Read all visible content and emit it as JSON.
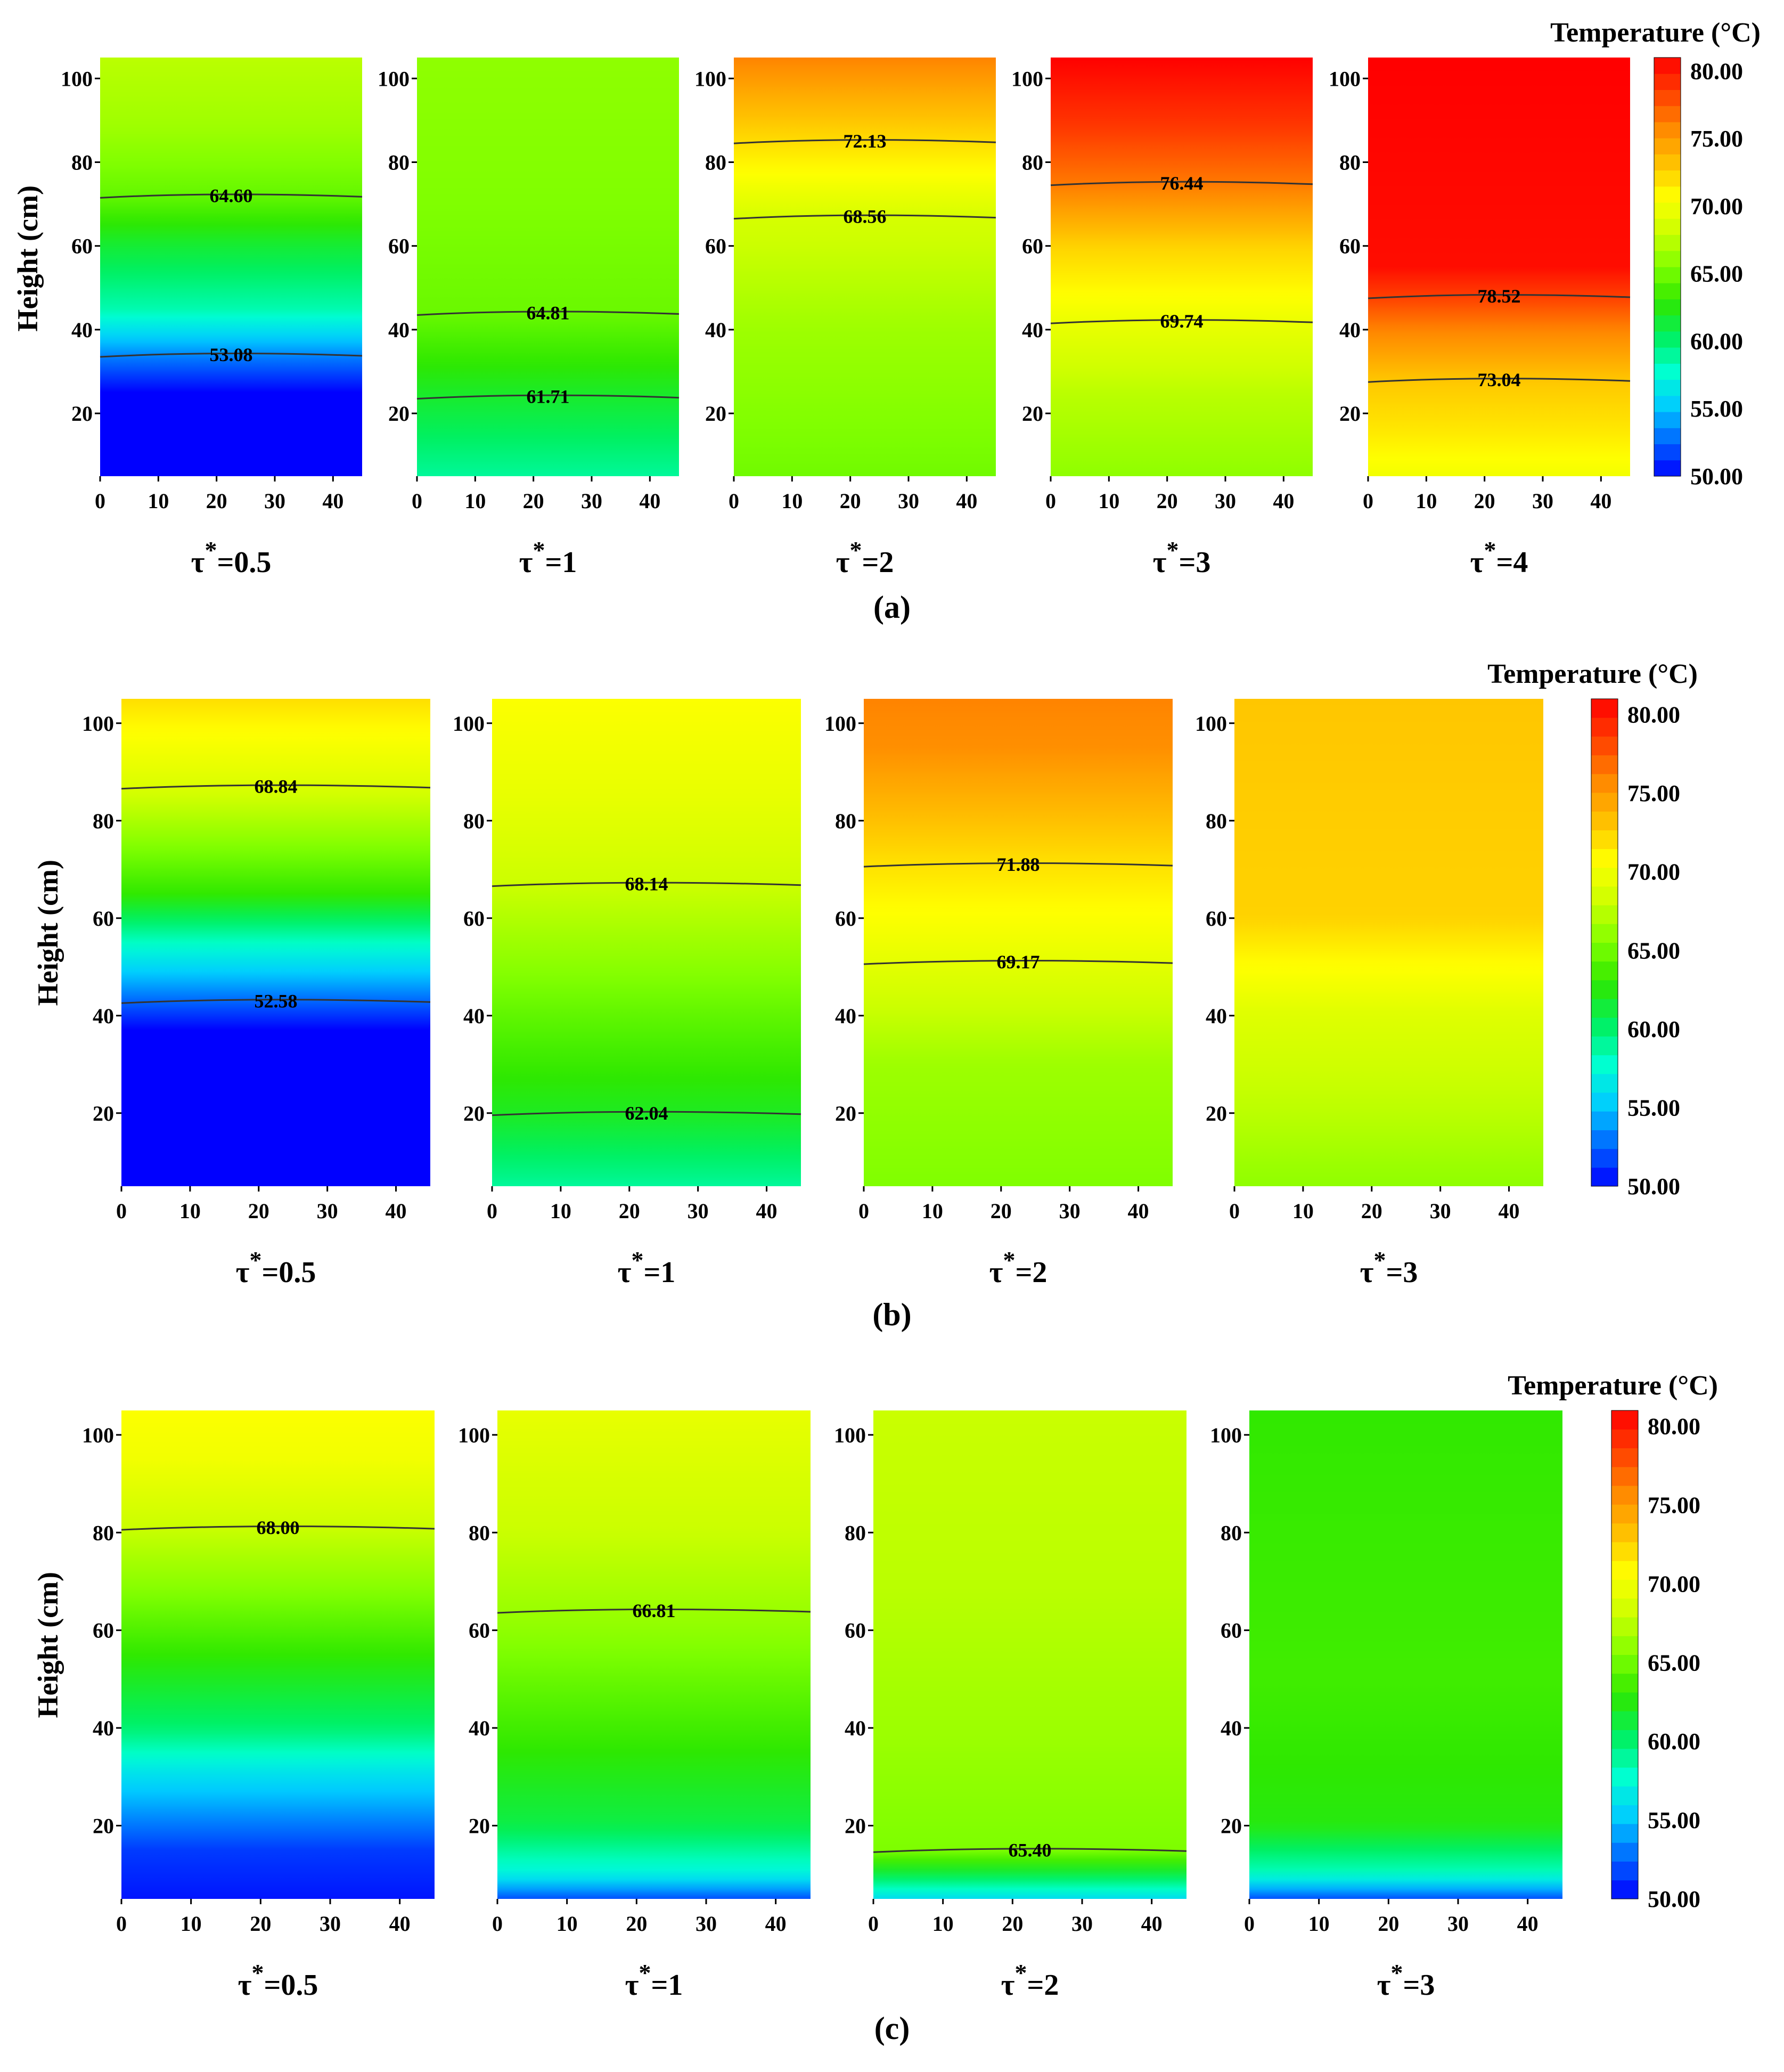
{
  "figure": {
    "colorbar": {
      "title": "Temperature (°C)",
      "ticks": [
        "80.00",
        "75.00",
        "70.00",
        "65.00",
        "60.00",
        "55.00",
        "50.00"
      ],
      "range": [
        50,
        81
      ]
    },
    "xticks": [
      "0",
      "10",
      "20",
      "30",
      "40"
    ],
    "yticks": [
      "100",
      "80",
      "60",
      "40",
      "20"
    ]
  },
  "colors": {
    "scale": [
      "#0000ff",
      "#0066ff",
      "#00ccff",
      "#00ffd0",
      "#00f060",
      "#2ee800",
      "#80ff00",
      "#ccff00",
      "#ffff00",
      "#ffc000",
      "#ff8800",
      "#ff4000",
      "#ff0000"
    ],
    "contour_line": "#333333"
  },
  "chart_data": [
    {
      "type": "heatmap",
      "panel_label": "(a)",
      "ylabel": "Height (cm)",
      "xlim": [
        0,
        45
      ],
      "ylim": [
        5,
        105
      ],
      "panels": [
        {
          "label": "τ*=0.5",
          "tau": "τ",
          "sup": "*",
          "value": "=0.5",
          "profile": [
            [
              5,
              50
            ],
            [
              25,
              50
            ],
            [
              33,
              53
            ],
            [
              45,
              58.5
            ],
            [
              60,
              61.5
            ],
            [
              72,
              64.6
            ],
            [
              88,
              66.5
            ],
            [
              105,
              67.5
            ]
          ],
          "contours": [
            {
              "label": "53.08",
              "y": 34
            },
            {
              "label": "64.60",
              "y": 72
            }
          ]
        },
        {
          "label": "τ*=1",
          "tau": "τ",
          "sup": "*",
          "value": "=1",
          "profile": [
            [
              5,
              59
            ],
            [
              24,
              61.7
            ],
            [
              44,
              64.8
            ],
            [
              70,
              65.5
            ],
            [
              105,
              66
            ]
          ],
          "contours": [
            {
              "label": "61.71",
              "y": 24
            },
            {
              "label": "64.81",
              "y": 44
            }
          ]
        },
        {
          "label": "τ*=2",
          "tau": "τ",
          "sup": "*",
          "value": "=2",
          "profile": [
            [
              5,
              65
            ],
            [
              40,
              66.5
            ],
            [
              67,
              68.6
            ],
            [
              85,
              72.1
            ],
            [
              95,
              74
            ],
            [
              105,
              76
            ]
          ],
          "contours": [
            {
              "label": "68.56",
              "y": 67
            },
            {
              "label": "72.13",
              "y": 85
            }
          ]
        },
        {
          "label": "τ*=3",
          "tau": "τ",
          "sup": "*",
          "value": "=3",
          "profile": [
            [
              5,
              66
            ],
            [
              25,
              67.5
            ],
            [
              42,
              69.7
            ],
            [
              60,
              72.5
            ],
            [
              75,
              76.4
            ],
            [
              90,
              79
            ],
            [
              105,
              81
            ]
          ],
          "contours": [
            {
              "label": "69.74",
              "y": 42
            },
            {
              "label": "76.44",
              "y": 75
            }
          ]
        },
        {
          "label": "τ*=4",
          "tau": "τ",
          "sup": "*",
          "value": "=4",
          "profile": [
            [
              5,
              70
            ],
            [
              15,
              71.5
            ],
            [
              28,
              73
            ],
            [
              40,
              76
            ],
            [
              48,
              78.5
            ],
            [
              55,
              80.5
            ],
            [
              105,
              81
            ]
          ],
          "contours": [
            {
              "label": "73.04",
              "y": 28
            },
            {
              "label": "78.52",
              "y": 48
            }
          ]
        }
      ]
    },
    {
      "type": "heatmap",
      "panel_label": "(b)",
      "ylabel": "Height (cm)",
      "xlim": [
        0,
        45
      ],
      "ylim": [
        5,
        105
      ],
      "panels": [
        {
          "label": "τ*=0.5",
          "tau": "τ",
          "sup": "*",
          "value": "=0.5",
          "profile": [
            [
              5,
              50
            ],
            [
              37,
              50
            ],
            [
              43,
              52.6
            ],
            [
              55,
              58
            ],
            [
              65,
              63
            ],
            [
              87,
              68.8
            ],
            [
              100,
              71
            ],
            [
              105,
              72
            ]
          ],
          "contours": [
            {
              "label": "52.58",
              "y": 43
            },
            {
              "label": "68.84",
              "y": 87
            }
          ]
        },
        {
          "label": "τ*=1",
          "tau": "τ",
          "sup": "*",
          "value": "=1",
          "profile": [
            [
              5,
              59
            ],
            [
              20,
              62
            ],
            [
              40,
              64.5
            ],
            [
              67,
              68.1
            ],
            [
              85,
              69.5
            ],
            [
              105,
              70.5
            ]
          ],
          "contours": [
            {
              "label": "62.04",
              "y": 20
            },
            {
              "label": "68.14",
              "y": 67
            }
          ]
        },
        {
          "label": "τ*=2",
          "tau": "τ",
          "sup": "*",
          "value": "=2",
          "profile": [
            [
              5,
              65.5
            ],
            [
              30,
              66.5
            ],
            [
              50,
              69.2
            ],
            [
              71,
              71.9
            ],
            [
              85,
              74
            ],
            [
              95,
              75.5
            ],
            [
              105,
              76
            ]
          ],
          "contours": [
            {
              "label": "69.17",
              "y": 51
            },
            {
              "label": "71.88",
              "y": 71
            }
          ]
        },
        {
          "label": "τ*=3",
          "tau": "τ",
          "sup": "*",
          "value": "=3",
          "profile": [
            [
              5,
              66
            ],
            [
              20,
              67.5
            ],
            [
              40,
              69
            ],
            [
              52,
              71
            ],
            [
              60,
              72.5
            ],
            [
              105,
              73
            ]
          ],
          "contours": []
        }
      ]
    },
    {
      "type": "heatmap",
      "panel_label": "(c)",
      "ylabel": "Height (cm)",
      "xlim": [
        0,
        45
      ],
      "ylim": [
        5,
        105
      ],
      "panels": [
        {
          "label": "τ*=0.5",
          "tau": "τ",
          "sup": "*",
          "value": "=0.5",
          "profile": [
            [
              5,
              50.5
            ],
            [
              15,
              51.5
            ],
            [
              30,
              56
            ],
            [
              40,
              60
            ],
            [
              55,
              63
            ],
            [
              70,
              66
            ],
            [
              81,
              68
            ],
            [
              95,
              70
            ],
            [
              105,
              70.5
            ]
          ],
          "contours": [
            {
              "label": "68.00",
              "y": 81
            }
          ]
        },
        {
          "label": "τ*=1",
          "tau": "τ",
          "sup": "*",
          "value": "=1",
          "profile": [
            [
              5,
              52
            ],
            [
              10,
              57
            ],
            [
              20,
              61
            ],
            [
              40,
              63.5
            ],
            [
              60,
              66
            ],
            [
              80,
              68
            ],
            [
              105,
              69.5
            ]
          ],
          "contours": [
            {
              "label": "66.81",
              "y": 64
            }
          ]
        },
        {
          "label": "τ*=2",
          "tau": "τ",
          "sup": "*",
          "value": "=2",
          "profile": [
            [
              5,
              56
            ],
            [
              10,
              61
            ],
            [
              15,
              65.4
            ],
            [
              40,
              66.5
            ],
            [
              70,
              67.5
            ],
            [
              105,
              68
            ]
          ],
          "contours": [
            {
              "label": "65.40",
              "y": 15
            }
          ]
        },
        {
          "label": "τ*=3",
          "tau": "τ",
          "sup": "*",
          "value": "=3",
          "profile": [
            [
              5,
              52
            ],
            [
              10,
              58
            ],
            [
              20,
              62.5
            ],
            [
              50,
              63.5
            ],
            [
              105,
              63
            ]
          ],
          "contours": []
        }
      ]
    }
  ]
}
